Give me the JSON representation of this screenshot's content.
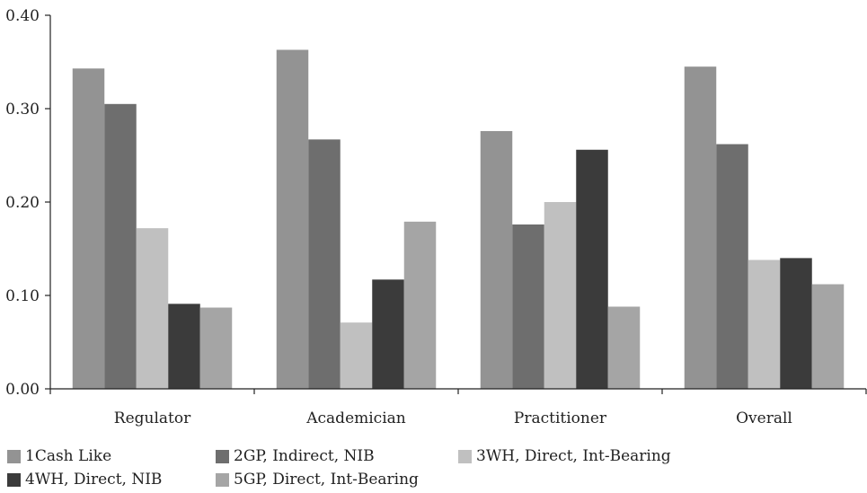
{
  "chart_data": {
    "type": "bar",
    "categories": [
      "Regulator",
      "Academician",
      "Practitioner",
      "Overall"
    ],
    "series": [
      {
        "name": "1Cash Like",
        "color": "#939393",
        "values": [
          0.343,
          0.363,
          0.276,
          0.345
        ]
      },
      {
        "name": "2GP, Indirect, NIB",
        "color": "#6e6e6e",
        "values": [
          0.305,
          0.267,
          0.176,
          0.262
        ]
      },
      {
        "name": "3WH, Direct, Int-Bearing",
        "color": "#c0c0c0",
        "values": [
          0.172,
          0.071,
          0.2,
          0.138
        ]
      },
      {
        "name": "4WH, Direct, NIB",
        "color": "#3b3b3b",
        "values": [
          0.091,
          0.117,
          0.256,
          0.14
        ]
      },
      {
        "name": "5GP, Direct, Int-Bearing",
        "color": "#a5a5a5",
        "values": [
          0.087,
          0.179,
          0.088,
          0.112
        ]
      }
    ],
    "ylim": [
      0,
      0.4
    ],
    "yticks": [
      "0.00",
      "0.10",
      "0.20",
      "0.30",
      "0.40"
    ],
    "grid": false,
    "legend_position": "bottom",
    "title": "",
    "xlabel": "",
    "ylabel": ""
  }
}
